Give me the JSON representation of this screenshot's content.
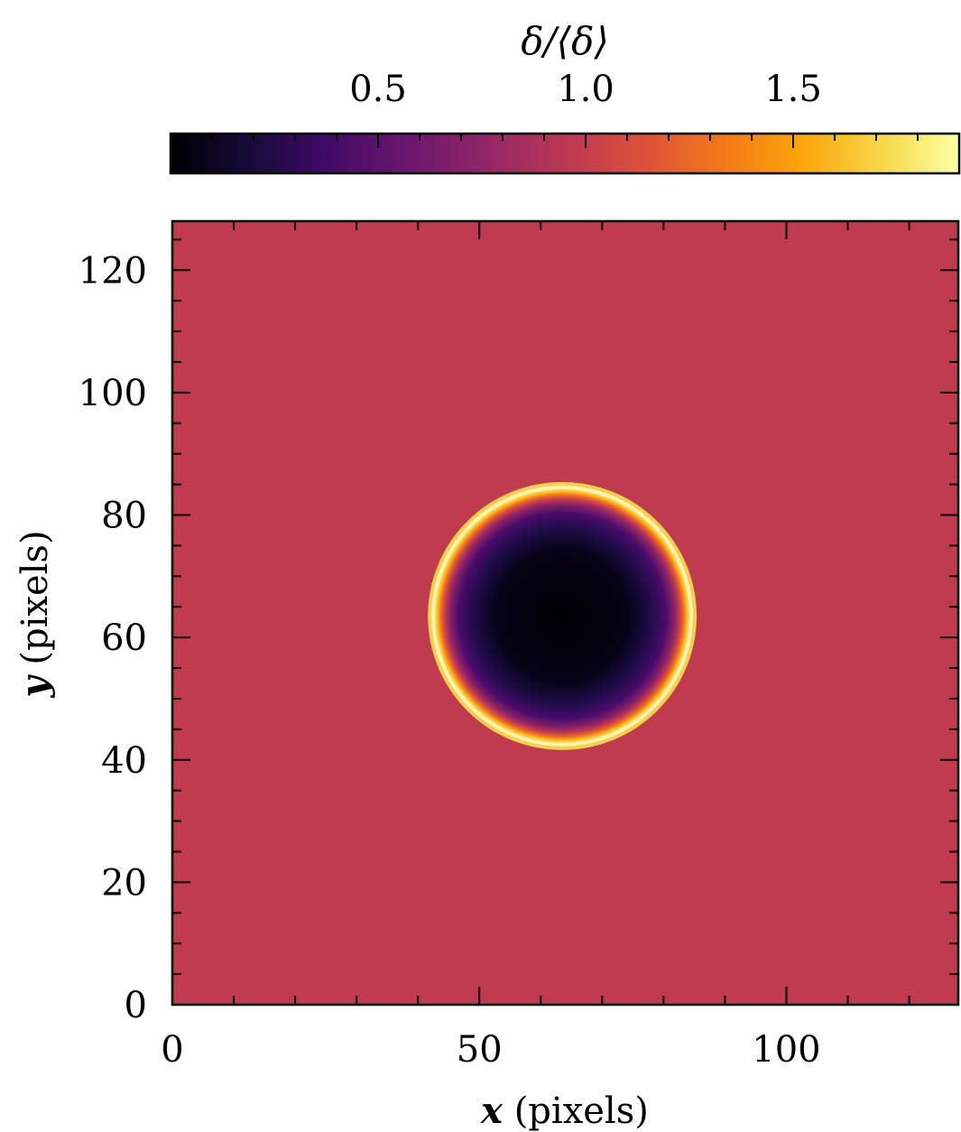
{
  "chart_data": {
    "type": "heatmap",
    "title": "",
    "xlabel_var": "x",
    "xlabel_unit": " (pixels)",
    "ylabel_var": "y",
    "ylabel_unit": " (pixels)",
    "xlim": [
      0,
      128
    ],
    "ylim": [
      0,
      128
    ],
    "x_ticks": [
      0,
      50,
      100
    ],
    "y_ticks": [
      0,
      20,
      40,
      60,
      80,
      100,
      120
    ],
    "x_tick_labels": [
      "0",
      "50",
      "100"
    ],
    "y_tick_labels": [
      "0",
      "20",
      "40",
      "60",
      "80",
      "100",
      "120"
    ],
    "colormap": "inferno",
    "background_value": 1.0,
    "features": {
      "void": {
        "shape": "circle",
        "center": [
          63.5,
          63.5
        ],
        "interior_value": 0.0
      },
      "ring": {
        "shape": "circle",
        "center": [
          63.5,
          63.5
        ],
        "radius": 21,
        "peak_value": 1.85
      }
    },
    "colorbar": {
      "label": "δ/⟨δ⟩",
      "range": [
        0.0,
        1.9
      ],
      "orientation": "horizontal",
      "location": "top",
      "ticks": [
        0.5,
        1.0,
        1.5
      ],
      "tick_labels": [
        "0.5",
        "1.0",
        "1.5"
      ]
    }
  }
}
